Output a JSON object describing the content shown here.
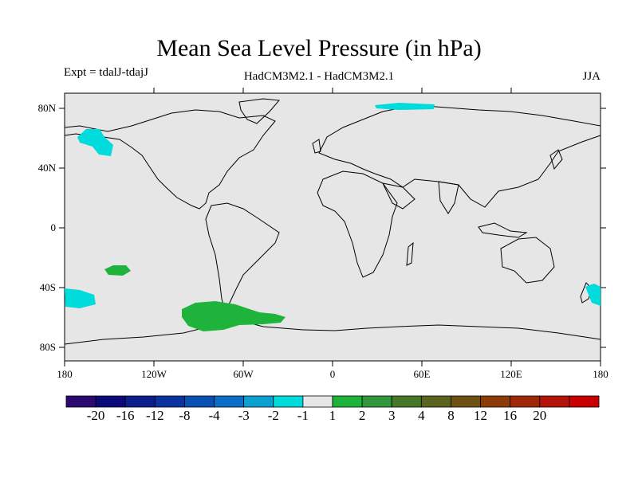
{
  "header": {
    "title": "Mean Sea Level Pressure (in hPa)",
    "experiment": "Expt = tdalJ-tdajJ",
    "models": "HadCM3M2.1 - HadCM3M2.1",
    "season": "JJA"
  },
  "axes": {
    "lat_labels": [
      "80N",
      "40N",
      "0",
      "40S",
      "80S"
    ],
    "lon_labels": [
      "180",
      "120W",
      "60W",
      "0",
      "60E",
      "120E",
      "180"
    ]
  },
  "colorbar": {
    "labels": [
      "-20",
      "-16",
      "-12",
      "-8",
      "-4",
      "-3",
      "-2",
      "-1",
      "1",
      "2",
      "3",
      "4",
      "8",
      "12",
      "16",
      "20"
    ],
    "colors": [
      "#2a0a6e",
      "#0a0a7a",
      "#0a1e8c",
      "#0a32a0",
      "#0a50b4",
      "#0a6ec8",
      "#0aa0d2",
      "#00dcdc",
      "#e6e6e6",
      "#1eb43c",
      "#32963c",
      "#46782a",
      "#5a641e",
      "#6e5014",
      "#8c3c0a",
      "#a0280a",
      "#b4140a",
      "#c80000"
    ]
  },
  "map": {
    "background": "#e6e6e6",
    "anomaly_colors": {
      "negative": "#00dcdc",
      "positive": "#1eb43c"
    }
  }
}
